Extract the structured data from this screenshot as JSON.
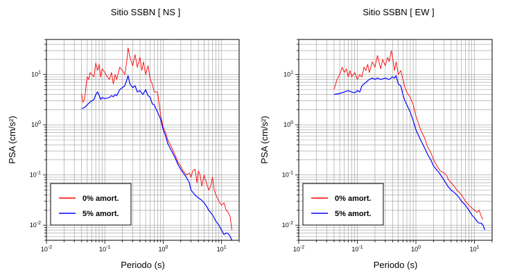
{
  "chart_data": [
    {
      "type": "line",
      "title": "Sitio SSBN [ NS ]",
      "xlabel": "Periodo (s)",
      "ylabel": "PSA (cm/s²)",
      "xscale": "log",
      "yscale": "log",
      "xlim": [
        0.01,
        20
      ],
      "ylim": [
        0.005,
        50
      ],
      "grid": true,
      "legend_position": "bottom-left",
      "x_ticks": [
        {
          "base": "10",
          "exp": "-2"
        },
        {
          "base": "10",
          "exp": "-1"
        },
        {
          "base": "10",
          "exp": "0"
        },
        {
          "base": "10",
          "exp": "1"
        }
      ],
      "y_ticks": [
        {
          "base": "10",
          "exp": "-2"
        },
        {
          "base": "10",
          "exp": "-1"
        },
        {
          "base": "10",
          "exp": "0"
        },
        {
          "base": "10",
          "exp": "1"
        }
      ],
      "series": [
        {
          "name": "0% amort.",
          "color": "#ff0000",
          "x": [
            0.04,
            0.042,
            0.045,
            0.048,
            0.05,
            0.053,
            0.056,
            0.06,
            0.065,
            0.07,
            0.075,
            0.08,
            0.085,
            0.09,
            0.1,
            0.11,
            0.12,
            0.13,
            0.14,
            0.15,
            0.16,
            0.18,
            0.2,
            0.22,
            0.24,
            0.25,
            0.27,
            0.3,
            0.33,
            0.36,
            0.4,
            0.43,
            0.46,
            0.5,
            0.55,
            0.6,
            0.65,
            0.7,
            0.8,
            0.9,
            1.0,
            1.1,
            1.2,
            1.4,
            1.6,
            1.8,
            2.0,
            2.2,
            2.5,
            2.8,
            3.0,
            3.2,
            3.5,
            3.8,
            4.0,
            4.3,
            4.6,
            5.0,
            5.5,
            6.0,
            6.5,
            7.0,
            7.5,
            8.0,
            9.0,
            10.0,
            11.0,
            12.0,
            13.0,
            14.0,
            15.0
          ],
          "y": [
            4.2,
            2.8,
            3.2,
            6.5,
            9.0,
            8.0,
            11.0,
            10.0,
            9.0,
            17.0,
            12.0,
            16.0,
            9.0,
            13.0,
            11.0,
            9.0,
            8.0,
            11.0,
            6.5,
            10.0,
            8.0,
            14.0,
            12.0,
            10.0,
            20.0,
            34.0,
            22.0,
            15.0,
            25.0,
            14.0,
            22.0,
            12.0,
            18.0,
            10.0,
            15.0,
            8.0,
            6.5,
            4.5,
            4.5,
            1.6,
            0.9,
            0.7,
            0.5,
            0.35,
            0.25,
            0.18,
            0.15,
            0.12,
            0.1,
            0.11,
            0.09,
            0.12,
            0.13,
            0.07,
            0.12,
            0.1,
            0.06,
            0.1,
            0.07,
            0.05,
            0.06,
            0.09,
            0.05,
            0.04,
            0.03,
            0.025,
            0.028,
            0.02,
            0.018,
            0.015,
            0.008
          ]
        },
        {
          "name": "5% amort.",
          "color": "#0000ff",
          "x": [
            0.04,
            0.045,
            0.05,
            0.055,
            0.06,
            0.065,
            0.07,
            0.075,
            0.08,
            0.085,
            0.09,
            0.1,
            0.11,
            0.12,
            0.13,
            0.14,
            0.15,
            0.16,
            0.18,
            0.2,
            0.22,
            0.24,
            0.25,
            0.27,
            0.3,
            0.33,
            0.36,
            0.4,
            0.45,
            0.5,
            0.55,
            0.6,
            0.65,
            0.7,
            0.8,
            0.9,
            1.0,
            1.1,
            1.2,
            1.4,
            1.6,
            1.8,
            2.0,
            2.2,
            2.5,
            2.8,
            3.0,
            3.5,
            4.0,
            4.5,
            5.0,
            5.5,
            6.0,
            7.0,
            8.0,
            9.0,
            10.0,
            11.0,
            12.0,
            13.0,
            14.0,
            15.0
          ],
          "y": [
            2.1,
            2.2,
            2.5,
            2.8,
            3.0,
            3.2,
            4.0,
            4.5,
            3.8,
            3.2,
            3.5,
            3.3,
            3.4,
            3.5,
            3.8,
            3.6,
            4.0,
            3.8,
            5.0,
            5.5,
            6.0,
            8.0,
            9.5,
            6.5,
            5.5,
            6.0,
            4.5,
            4.8,
            4.0,
            5.0,
            3.8,
            3.5,
            2.6,
            2.5,
            1.8,
            1.3,
            0.8,
            0.6,
            0.42,
            0.3,
            0.22,
            0.16,
            0.13,
            0.11,
            0.09,
            0.07,
            0.05,
            0.04,
            0.035,
            0.032,
            0.028,
            0.024,
            0.02,
            0.016,
            0.012,
            0.01,
            0.008,
            0.0065,
            0.007,
            0.0068,
            0.006,
            0.005
          ]
        }
      ]
    },
    {
      "type": "line",
      "title": "Sitio SSBN [ EW ]",
      "xlabel": "Periodo (s)",
      "ylabel": "PSA (cm/s²)",
      "xscale": "log",
      "yscale": "log",
      "xlim": [
        0.01,
        20
      ],
      "ylim": [
        0.005,
        50
      ],
      "grid": true,
      "legend_position": "bottom-left",
      "x_ticks": [
        {
          "base": "10",
          "exp": "-2"
        },
        {
          "base": "10",
          "exp": "-1"
        },
        {
          "base": "10",
          "exp": "0"
        },
        {
          "base": "10",
          "exp": "1"
        }
      ],
      "y_ticks": [
        {
          "base": "10",
          "exp": "-2"
        },
        {
          "base": "10",
          "exp": "-1"
        },
        {
          "base": "10",
          "exp": "0"
        },
        {
          "base": "10",
          "exp": "1"
        }
      ],
      "series": [
        {
          "name": "0% amort.",
          "color": "#ff0000",
          "x": [
            0.04,
            0.045,
            0.05,
            0.055,
            0.06,
            0.065,
            0.07,
            0.075,
            0.08,
            0.09,
            0.1,
            0.11,
            0.12,
            0.13,
            0.14,
            0.15,
            0.16,
            0.18,
            0.2,
            0.22,
            0.25,
            0.27,
            0.3,
            0.33,
            0.35,
            0.38,
            0.4,
            0.43,
            0.46,
            0.5,
            0.55,
            0.6,
            0.65,
            0.7,
            0.8,
            0.9,
            1.0,
            1.2,
            1.4,
            1.6,
            1.8,
            2.0,
            2.3,
            2.6,
            3.0,
            3.3,
            3.6,
            4.0,
            4.5,
            5.0,
            5.5,
            6.0,
            7.0,
            8.0,
            9.0,
            10.0,
            11.0,
            12.0,
            13.0,
            14.0
          ],
          "y": [
            5.0,
            8.0,
            10.0,
            14.0,
            11.0,
            13.0,
            9.0,
            12.0,
            9.0,
            11.0,
            8.0,
            10.0,
            9.0,
            14.0,
            12.0,
            16.0,
            11.0,
            18.0,
            14.0,
            24.0,
            13.0,
            20.0,
            15.0,
            22.0,
            18.0,
            30.0,
            22.0,
            12.0,
            18.0,
            10.0,
            12.0,
            8.0,
            5.5,
            4.5,
            3.5,
            2.5,
            1.5,
            0.8,
            0.55,
            0.35,
            0.28,
            0.2,
            0.15,
            0.12,
            0.11,
            0.1,
            0.08,
            0.07,
            0.06,
            0.05,
            0.045,
            0.04,
            0.03,
            0.025,
            0.022,
            0.02,
            0.018,
            0.02,
            0.015,
            0.013
          ]
        },
        {
          "name": "5% amort.",
          "color": "#0000ff",
          "x": [
            0.04,
            0.05,
            0.06,
            0.07,
            0.08,
            0.09,
            0.1,
            0.11,
            0.12,
            0.13,
            0.14,
            0.15,
            0.16,
            0.18,
            0.2,
            0.22,
            0.25,
            0.3,
            0.35,
            0.4,
            0.43,
            0.46,
            0.5,
            0.55,
            0.6,
            0.65,
            0.7,
            0.8,
            0.9,
            1.0,
            1.2,
            1.4,
            1.6,
            1.8,
            2.0,
            2.5,
            3.0,
            3.5,
            4.0,
            4.5,
            5.0,
            5.5,
            6.0,
            7.0,
            8.0,
            9.0,
            10.0,
            11.0,
            12.0,
            13.0,
            14.0,
            15.0
          ],
          "y": [
            4.0,
            4.2,
            4.5,
            4.8,
            4.5,
            4.3,
            4.8,
            4.5,
            6.0,
            6.5,
            7.0,
            7.5,
            8.0,
            8.5,
            8.0,
            8.5,
            8.0,
            8.5,
            8.0,
            9.0,
            8.5,
            9.5,
            6.5,
            6.0,
            4.0,
            3.0,
            2.5,
            1.8,
            1.2,
            0.8,
            0.5,
            0.35,
            0.25,
            0.2,
            0.15,
            0.11,
            0.08,
            0.06,
            0.05,
            0.045,
            0.04,
            0.035,
            0.03,
            0.025,
            0.02,
            0.016,
            0.014,
            0.012,
            0.011,
            0.011,
            0.01,
            0.008
          ]
        }
      ]
    }
  ]
}
